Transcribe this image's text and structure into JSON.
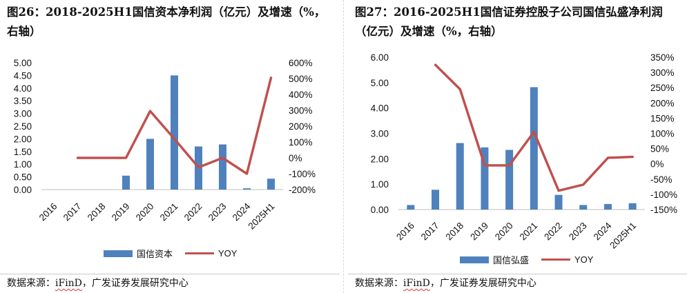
{
  "chart_data": [
    {
      "type": "bar+line",
      "title": "图26：2018-2025H1国信资本净利润（亿元）及增速（%，右轴）",
      "categories": [
        "2016",
        "2017",
        "2018",
        "2019",
        "2020",
        "2021",
        "2022",
        "2023",
        "2024",
        "2025H1"
      ],
      "series": [
        {
          "name": "国信资本",
          "type": "bar",
          "axis": "left",
          "values": [
            0,
            0,
            0,
            0.55,
            2.0,
            4.5,
            1.7,
            1.78,
            0.05,
            0.43
          ]
        },
        {
          "name": "YOY",
          "type": "line",
          "axis": "right",
          "values": [
            null,
            0.0,
            0.0,
            0.0,
            2.95,
            1.2,
            -0.6,
            0.0,
            -1.0,
            5.05
          ]
        }
      ],
      "yleft": {
        "min": 0,
        "max": 5,
        "step": 0.5,
        "ticks": [
          "0.00",
          "0.50",
          "1.00",
          "1.50",
          "2.00",
          "2.50",
          "3.00",
          "3.50",
          "4.00",
          "4.50",
          "5.00"
        ]
      },
      "yright": {
        "min": -2,
        "max": 6,
        "step": 1,
        "ticks": [
          "-200%",
          "-100%",
          "0%",
          "100%",
          "200%",
          "300%",
          "400%",
          "500%",
          "600%"
        ]
      },
      "legend": [
        "国信资本",
        "YOY"
      ],
      "source_label": "数据来源：",
      "source_brand": "iFinD",
      "source_rest": "，广发证券发展研究中心",
      "colors": {
        "bar": "#4f81bd",
        "line": "#c0504d"
      }
    },
    {
      "type": "bar+line",
      "title": "图27：2016-2025H1国信证券控股子公司国信弘盛净利润（亿元）及增速（%，右轴）",
      "categories": [
        "2016",
        "2017",
        "2018",
        "2019",
        "2020",
        "2021",
        "2022",
        "2023",
        "2024",
        "2025H1"
      ],
      "series": [
        {
          "name": "国信弘盛",
          "type": "bar",
          "axis": "left",
          "values": [
            0.18,
            0.78,
            2.62,
            2.45,
            2.35,
            4.82,
            0.58,
            0.18,
            0.22,
            0.25
          ]
        },
        {
          "name": "YOY",
          "type": "line",
          "axis": "right",
          "values": [
            null,
            3.25,
            2.45,
            -0.05,
            -0.05,
            1.05,
            -0.88,
            -0.68,
            0.2,
            0.23
          ]
        }
      ],
      "yleft": {
        "min": 0,
        "max": 6,
        "step": 1,
        "ticks": [
          "0.00",
          "1.00",
          "2.00",
          "3.00",
          "4.00",
          "5.00",
          "6.00"
        ]
      },
      "yright": {
        "min": -1.5,
        "max": 3.5,
        "step": 0.5,
        "ticks": [
          "-150%",
          "-100%",
          "-50%",
          "0%",
          "50%",
          "100%",
          "150%",
          "200%",
          "250%",
          "300%",
          "350%"
        ]
      },
      "legend": [
        "国信弘盛",
        "YOY"
      ],
      "source_label": "数据来源：",
      "source_brand": "iFinD",
      "source_rest": "，广发证券发展研究中心",
      "colors": {
        "bar": "#4f81bd",
        "line": "#c0504d"
      }
    }
  ]
}
